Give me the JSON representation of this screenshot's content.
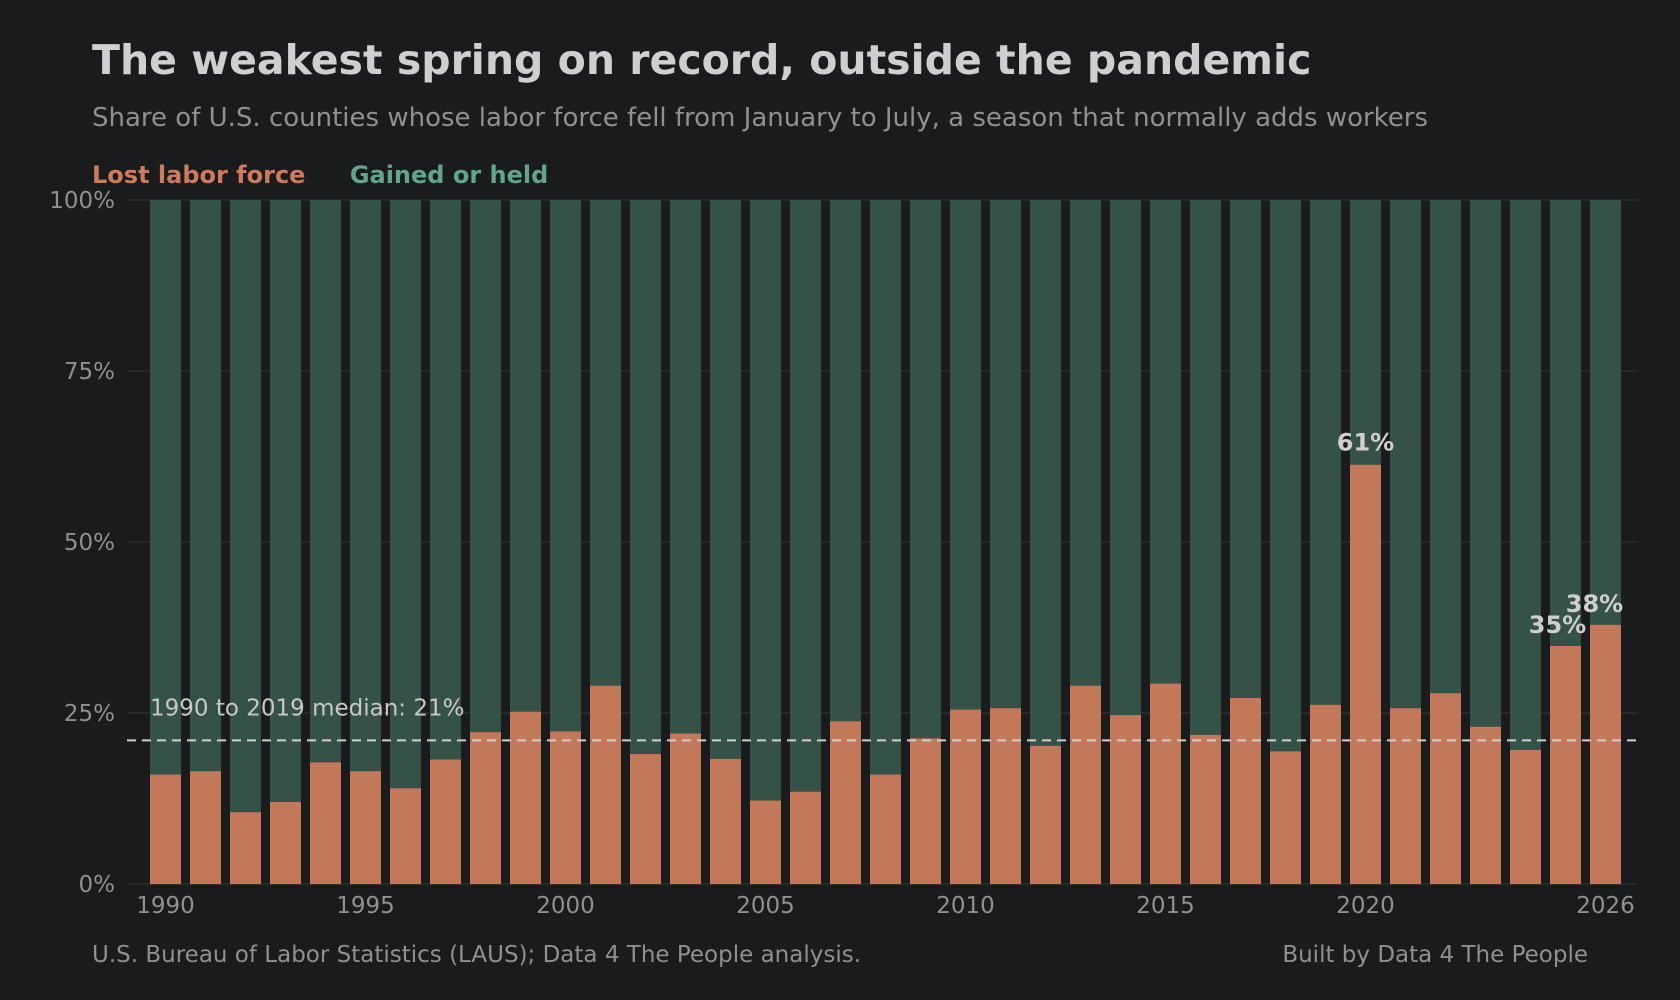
{
  "title": "The weakest spring on record, outside the pandemic",
  "subtitle": "Share of U.S. counties whose labor force fell from January to July, a season that normally adds workers",
  "legend": {
    "lost": "Lost labor force",
    "gained": "Gained or held"
  },
  "footer": {
    "source": "U.S. Bureau of Labor Statistics (LAUS); Data 4 The People analysis.",
    "credit": "Built by Data 4 The People"
  },
  "colors": {
    "background": "#1a1b1d",
    "lost": "#c4785a",
    "gained": "#345248",
    "lost_legend": "#d07a5c",
    "gained_legend": "#5fa68c",
    "grid": "#2c2e30",
    "median_line": "#cfcfcf"
  },
  "chart_data": {
    "type": "bar",
    "stacked": true,
    "x": [
      1990,
      1991,
      1992,
      1993,
      1994,
      1995,
      1996,
      1997,
      1998,
      1999,
      2000,
      2001,
      2002,
      2003,
      2004,
      2005,
      2006,
      2007,
      2008,
      2009,
      2010,
      2011,
      2012,
      2013,
      2014,
      2015,
      2016,
      2017,
      2018,
      2019,
      2020,
      2021,
      2022,
      2023,
      2024,
      2025,
      2026
    ],
    "series": [
      {
        "name": "Lost labor force",
        "values": [
          16,
          16.5,
          10.5,
          12,
          17.8,
          16.5,
          14,
          18.2,
          22.2,
          25.2,
          22.3,
          29,
          19,
          22,
          18.3,
          12.2,
          13.5,
          23.8,
          16,
          21.3,
          25.5,
          25.7,
          20.2,
          29,
          24.7,
          29.3,
          21.8,
          27.2,
          19.4,
          26.2,
          61.3,
          25.7,
          27.9,
          23,
          19.6,
          34.8,
          37.9
        ]
      },
      {
        "name": "Gained or held",
        "values": [
          84,
          83.5,
          89.5,
          88,
          82.2,
          83.5,
          86,
          81.8,
          77.8,
          74.8,
          77.7,
          71,
          81,
          78,
          81.7,
          87.8,
          86.5,
          76.2,
          84,
          78.7,
          74.5,
          74.3,
          79.8,
          71,
          75.3,
          70.7,
          78.2,
          72.8,
          80.6,
          73.8,
          38.7,
          74.3,
          72.1,
          77,
          80.4,
          65.2,
          62.1
        ]
      }
    ],
    "y_ticks": [
      "0%",
      "25%",
      "50%",
      "75%",
      "100%"
    ],
    "y_tick_values": [
      0,
      25,
      50,
      75,
      100
    ],
    "ylim": [
      0,
      100
    ],
    "x_ticks": [
      "1990",
      "1995",
      "2000",
      "2005",
      "2010",
      "2015",
      "2020",
      "2026"
    ],
    "x_tick_values": [
      1990,
      1995,
      2000,
      2005,
      2010,
      2015,
      2020,
      2026
    ],
    "reference_line": {
      "value": 21,
      "label": "1990 to 2019 median: 21%"
    },
    "annotations": [
      {
        "x": 2020,
        "y": 61,
        "text": "61%"
      },
      {
        "x": 2025,
        "y": 35,
        "text": "35%"
      },
      {
        "x": 2026,
        "y": 38,
        "text": "38%"
      }
    ],
    "grid": true,
    "legend_position": "top-left"
  }
}
